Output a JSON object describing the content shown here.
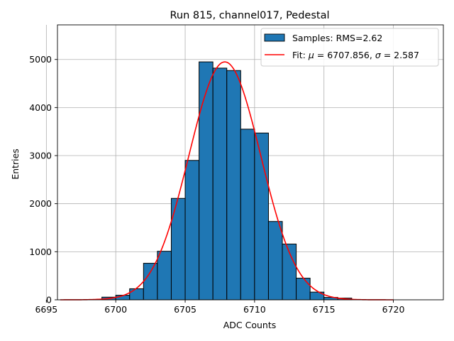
{
  "chart_data": {
    "type": "bar",
    "title": "Run 815, channel017, Pedestal",
    "xlabel": "ADC Counts",
    "ylabel": "Entries",
    "xlim": [
      6695.8,
      6723.6
    ],
    "ylim": [
      0,
      5720
    ],
    "xticks": [
      6695,
      6700,
      6705,
      6710,
      6715,
      6720
    ],
    "yticks": [
      0,
      1000,
      2000,
      3000,
      4000,
      5000
    ],
    "grid": true,
    "legend_position": "top-right",
    "histogram": {
      "name": "Samples: RMS=2.62",
      "color": "#1f77b4",
      "edgecolor": "#000000",
      "bin_width": 1,
      "bins": [
        {
          "x": 6699,
          "count": 55
        },
        {
          "x": 6700,
          "count": 95
        },
        {
          "x": 6701,
          "count": 230
        },
        {
          "x": 6702,
          "count": 760
        },
        {
          "x": 6703,
          "count": 1010
        },
        {
          "x": 6704,
          "count": 2110
        },
        {
          "x": 6705,
          "count": 2900
        },
        {
          "x": 6706,
          "count": 4950
        },
        {
          "x": 6707,
          "count": 4820
        },
        {
          "x": 6708,
          "count": 4770
        },
        {
          "x": 6709,
          "count": 3550
        },
        {
          "x": 6710,
          "count": 3470
        },
        {
          "x": 6711,
          "count": 1630
        },
        {
          "x": 6712,
          "count": 1160
        },
        {
          "x": 6713,
          "count": 450
        },
        {
          "x": 6714,
          "count": 160
        },
        {
          "x": 6715,
          "count": 50
        },
        {
          "x": 6716,
          "count": 35
        }
      ]
    },
    "fit": {
      "name_prefix": "Fit: ",
      "mu_symbol": "μ",
      "mu_text": " = 6707.856, ",
      "sigma_symbol": "σ",
      "sigma_text": " = 2.587",
      "color": "#ff0000",
      "mu": 6707.856,
      "sigma": 2.587,
      "amplitude": 4950,
      "x_range": [
        6696,
        6720
      ]
    }
  }
}
